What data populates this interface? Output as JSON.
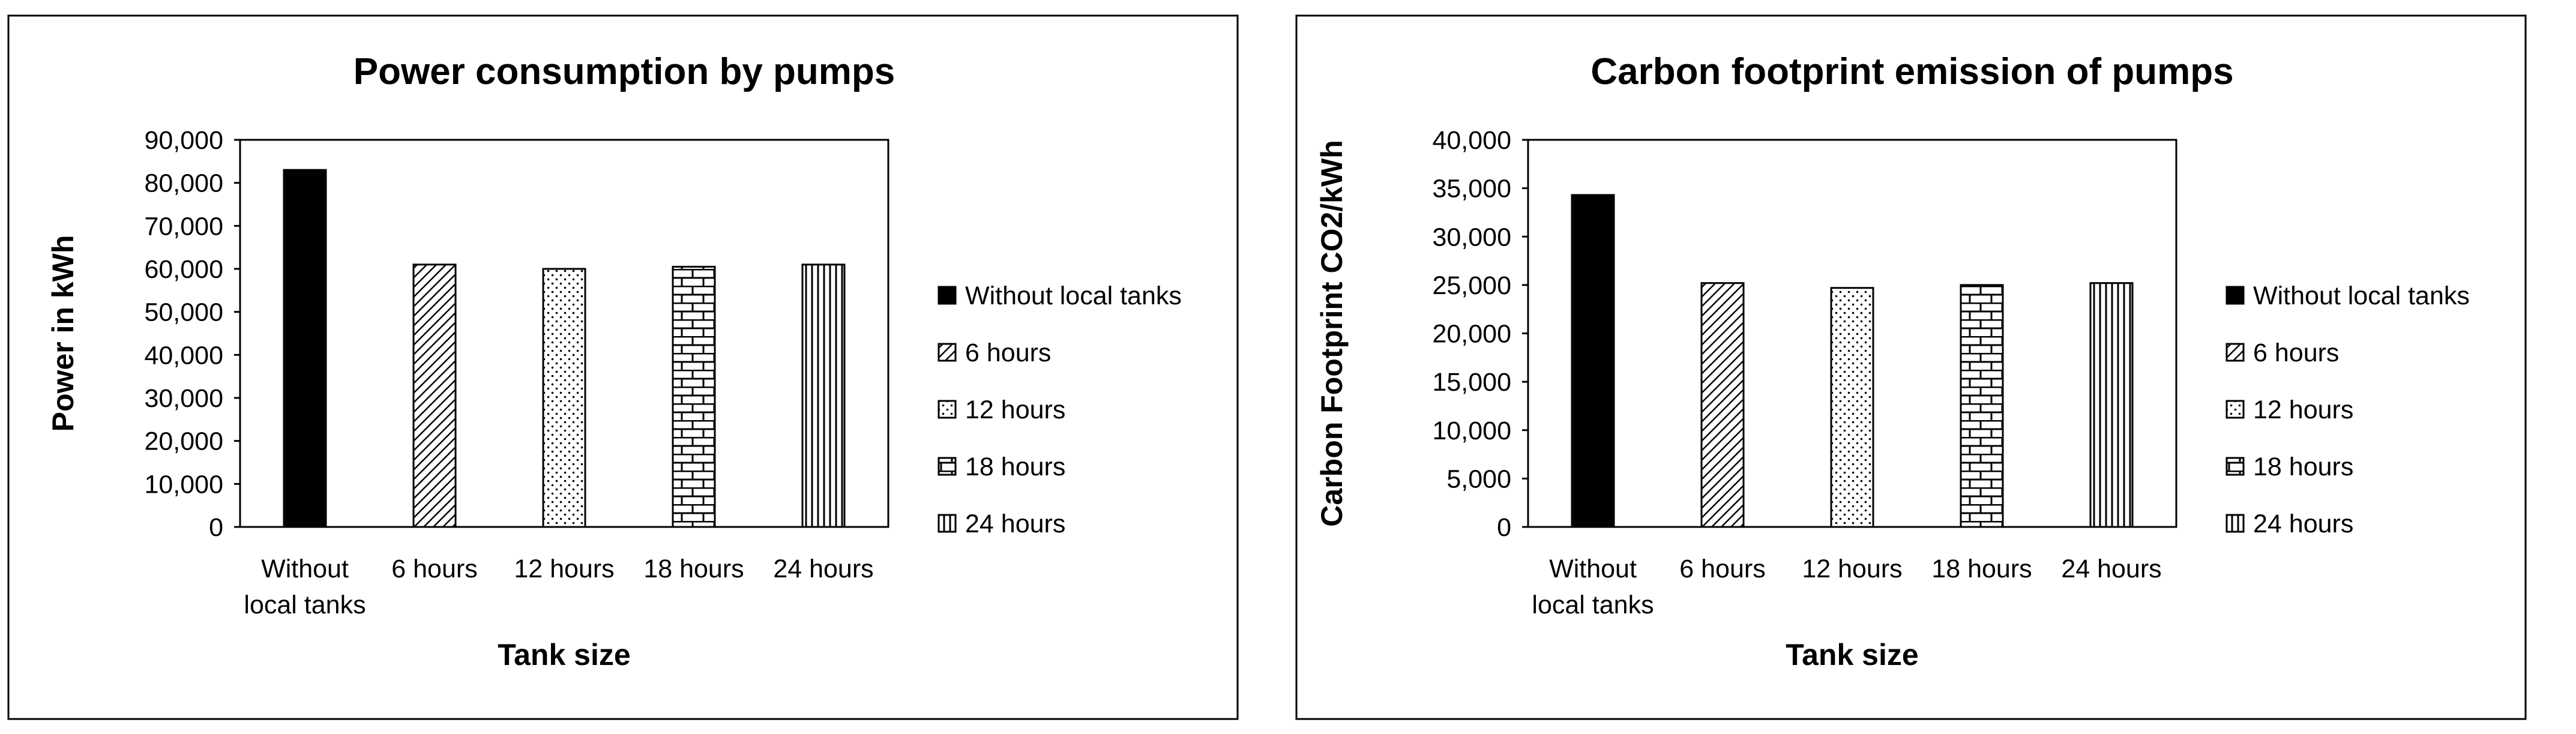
{
  "chart_data": [
    {
      "type": "bar",
      "title": "Power consumption by pumps",
      "xlabel": "Tank size",
      "ylabel": "Power in kWh",
      "ylim": [
        0,
        90000
      ],
      "yticks": [
        "0",
        "10,000",
        "20,000",
        "30,000",
        "40,000",
        "50,000",
        "60,000",
        "70,000",
        "80,000",
        "90,000"
      ],
      "categories": [
        {
          "label": "Without local tanks",
          "lines": [
            "Without",
            "local tanks"
          ]
        },
        {
          "label": "6 hours",
          "lines": [
            "6 hours"
          ]
        },
        {
          "label": "12 hours",
          "lines": [
            "12 hours"
          ]
        },
        {
          "label": "18 hours",
          "lines": [
            "18 hours"
          ]
        },
        {
          "label": "24 hours",
          "lines": [
            "24 hours"
          ]
        }
      ],
      "values": [
        83000,
        61000,
        60000,
        60500,
        61000
      ],
      "legend": [
        "Without local tanks",
        "6 hours",
        "12 hours",
        "18 hours",
        "24 hours"
      ],
      "legend_position": "right",
      "grid": false
    },
    {
      "type": "bar",
      "title": "Carbon footprint emission of pumps",
      "xlabel": "Tank size",
      "ylabel": "Carbon Footprint CO2/kWh",
      "ylim": [
        0,
        40000
      ],
      "yticks": [
        "0",
        "5,000",
        "10,000",
        "15,000",
        "20,000",
        "25,000",
        "30,000",
        "35,000",
        "40,000"
      ],
      "categories": [
        {
          "label": "Without local tanks",
          "lines": [
            "Without",
            "local tanks"
          ]
        },
        {
          "label": "6 hours",
          "lines": [
            "6 hours"
          ]
        },
        {
          "label": "12 hours",
          "lines": [
            "12 hours"
          ]
        },
        {
          "label": "18 hours",
          "lines": [
            "18 hours"
          ]
        },
        {
          "label": "24 hours",
          "lines": [
            "24 hours"
          ]
        }
      ],
      "values": [
        34300,
        25200,
        24700,
        25000,
        25200
      ],
      "legend": [
        "Without local tanks",
        "6 hours",
        "12 hours",
        "18 hours",
        "24 hours"
      ],
      "legend_position": "right",
      "grid": false
    }
  ],
  "patterns": [
    "solid-black",
    "diagonal-hatch",
    "dots",
    "brick",
    "vertical-lines"
  ]
}
